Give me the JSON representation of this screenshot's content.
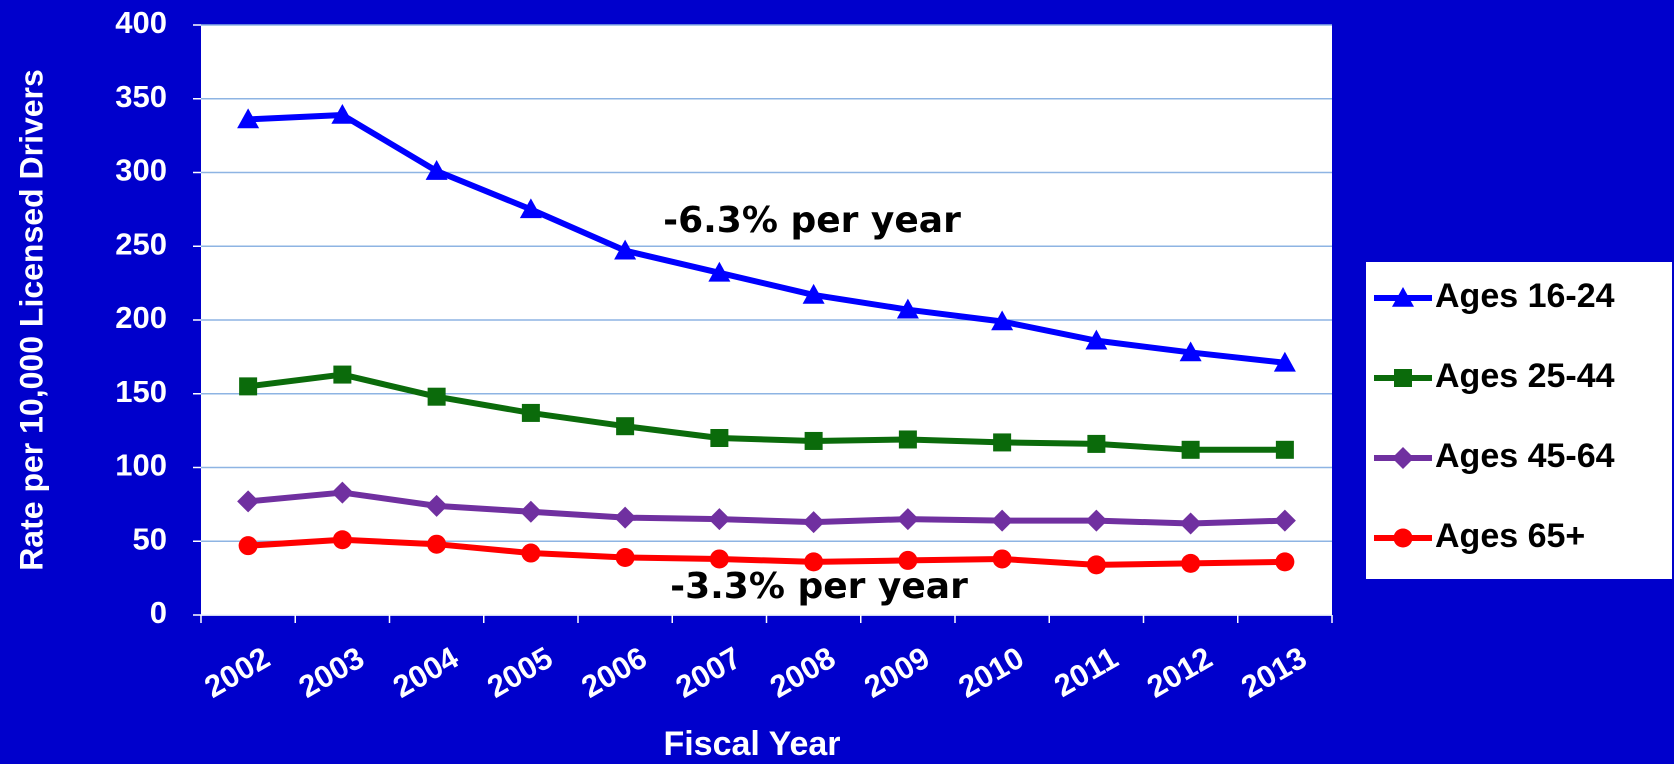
{
  "chart_data": {
    "type": "line",
    "xlabel": "Fiscal Year",
    "ylabel": "Rate per 10,000 Licensed Drivers",
    "categories": [
      "2002",
      "2003",
      "2004",
      "2005",
      "2006",
      "2007",
      "2008",
      "2009",
      "2010",
      "2011",
      "2012",
      "2013"
    ],
    "series": [
      {
        "name": "Ages 16-24",
        "color": "#0000ff",
        "marker": "triangle",
        "values": [
          336,
          339,
          301,
          275,
          247,
          232,
          217,
          207,
          199,
          186,
          178,
          171
        ]
      },
      {
        "name": "Ages 25-44",
        "color": "#0b6b0b",
        "marker": "square",
        "values": [
          155,
          163,
          148,
          137,
          128,
          120,
          118,
          119,
          117,
          116,
          112,
          112
        ]
      },
      {
        "name": "Ages 45-64",
        "color": "#7030a0",
        "marker": "diamond",
        "values": [
          77,
          83,
          74,
          70,
          66,
          65,
          63,
          65,
          64,
          64,
          62,
          64
        ]
      },
      {
        "name": "Ages 65+",
        "color": "#ff0000",
        "marker": "circle",
        "values": [
          47,
          51,
          48,
          42,
          39,
          38,
          36,
          37,
          38,
          34,
          35,
          36
        ]
      }
    ],
    "annotations": [
      "-6.3% per year",
      "-3.3% per year"
    ],
    "ylim": [
      0,
      400
    ],
    "yticks": [
      0,
      50,
      100,
      150,
      200,
      250,
      300,
      350,
      400
    ],
    "grid": true,
    "legend": "right"
  }
}
